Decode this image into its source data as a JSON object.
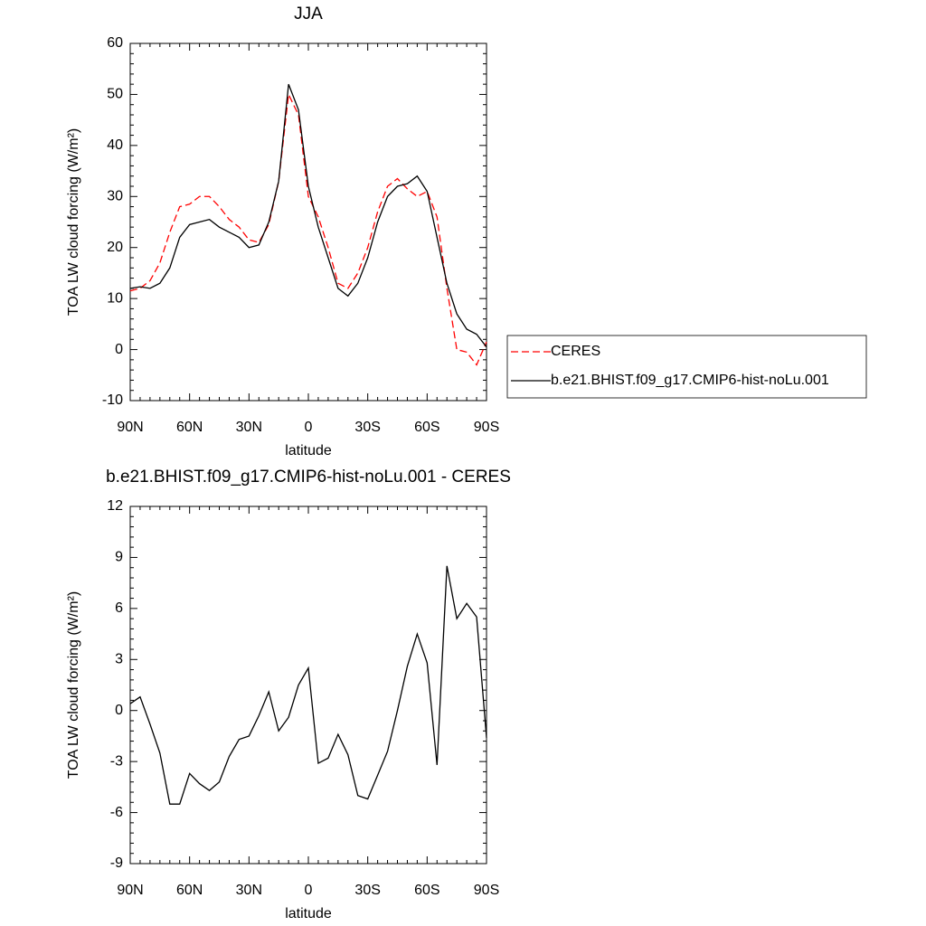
{
  "chart_data": [
    {
      "type": "line",
      "title": "JJA",
      "xlabel": "latitude",
      "ylabel": "TOA LW cloud forcing (W/m²)",
      "x": [
        90,
        85,
        80,
        75,
        70,
        65,
        60,
        55,
        50,
        45,
        40,
        35,
        30,
        25,
        20,
        15,
        10,
        5,
        0,
        -5,
        -10,
        -15,
        -20,
        -25,
        -30,
        -35,
        -40,
        -45,
        -50,
        -55,
        -60,
        -65,
        -70,
        -75,
        -80,
        -85,
        -90
      ],
      "series": [
        {
          "name": "CERES",
          "color": "#ff0000",
          "dash": true,
          "values": [
            11.5,
            12,
            13.5,
            17,
            23,
            28,
            28.5,
            30,
            30,
            28,
            25.5,
            24,
            21.5,
            21,
            24.5,
            33,
            50,
            46,
            30,
            26,
            20,
            13,
            12,
            15,
            20,
            27,
            32,
            33.5,
            31.5,
            30,
            31,
            26,
            12,
            0,
            -0.5,
            -3,
            1.5
          ]
        },
        {
          "name": "b.e21.BHIST.f09_g17.CMIP6-hist-noLu.001",
          "color": "#000000",
          "dash": false,
          "values": [
            12,
            12.3,
            12,
            13,
            16,
            22,
            24.5,
            25,
            25.5,
            24,
            23,
            22,
            20,
            20.5,
            25,
            33,
            52,
            47,
            32,
            24,
            18,
            12,
            10.5,
            13,
            18,
            25,
            30,
            32,
            32.5,
            34,
            31,
            22,
            13,
            7,
            4,
            3,
            0.5
          ]
        }
      ],
      "xlim": [
        90,
        -90
      ],
      "xticks": [
        {
          "value": 90,
          "label": "90N"
        },
        {
          "value": 60,
          "label": "60N"
        },
        {
          "value": 30,
          "label": "30N"
        },
        0,
        {
          "value": -30,
          "label": "30S"
        },
        {
          "value": -60,
          "label": "60S"
        },
        {
          "value": -90,
          "label": "90S"
        }
      ],
      "ylim": [
        -10,
        60
      ],
      "yticks": [
        -10,
        0,
        10,
        20,
        30,
        40,
        50,
        60
      ],
      "legend": "right"
    },
    {
      "type": "line",
      "title": "b.e21.BHIST.f09_g17.CMIP6-hist-noLu.001 - CERES",
      "xlabel": "latitude",
      "ylabel": "TOA LW cloud forcing (W/m²)",
      "x": [
        90,
        85,
        80,
        75,
        70,
        65,
        60,
        55,
        50,
        45,
        40,
        35,
        30,
        25,
        20,
        15,
        10,
        5,
        0,
        -5,
        -10,
        -15,
        -20,
        -25,
        -30,
        -35,
        -40,
        -45,
        -50,
        -55,
        -60,
        -65,
        -70,
        -75,
        -80,
        -85,
        -90
      ],
      "values": [
        0.4,
        0.8,
        -0.8,
        -2.5,
        -5.5,
        -5.5,
        -3.7,
        -4.3,
        -4.7,
        -4.2,
        -2.7,
        -1.7,
        -1.5,
        -0.3,
        1.1,
        -1.2,
        -0.4,
        1.5,
        2.5,
        -3.1,
        -2.8,
        -1.4,
        -2.6,
        -5,
        -5.2,
        -3.8,
        -2.4,
        0,
        2.6,
        4.5,
        2.8,
        -3.2,
        8.5,
        5.4,
        6.3,
        5.5,
        -1.6
      ],
      "color": "#000000",
      "xlim": [
        90,
        -90
      ],
      "xticks": [
        {
          "value": 90,
          "label": "90N"
        },
        {
          "value": 60,
          "label": "60N"
        },
        {
          "value": 30,
          "label": "30N"
        },
        0,
        {
          "value": -30,
          "label": "30S"
        },
        {
          "value": -60,
          "label": "60S"
        },
        {
          "value": -90,
          "label": "90S"
        }
      ],
      "ylim": [
        -9,
        12
      ],
      "yticks": [
        -9,
        -6,
        -3,
        0,
        3,
        6,
        9,
        12
      ]
    }
  ]
}
